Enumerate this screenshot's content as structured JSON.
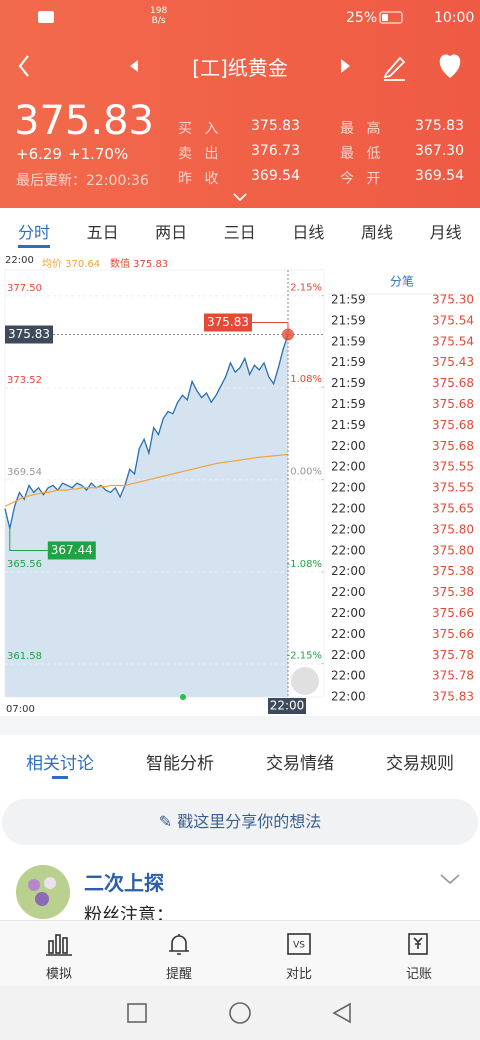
{
  "status": {
    "speed": "198",
    "speed_unit": "B/s",
    "battery": "25%",
    "time": "10:00"
  },
  "header": {
    "title": "[工]纸黄金"
  },
  "quote": {
    "price": "375.83",
    "change": "+6.29",
    "change_pct": "+1.70%",
    "updated": "最后更新：22:00:36",
    "stats": [
      [
        "买 入",
        "375.83",
        "最 高",
        "375.83"
      ],
      [
        "卖 出",
        "376.73",
        "最 低",
        "367.30"
      ],
      [
        "昨 收",
        "369.54",
        "今 开",
        "369.54"
      ]
    ]
  },
  "tabs": [
    "分时",
    "五日",
    "两日",
    "三日",
    "日线",
    "周线",
    "月线"
  ],
  "chart_info": {
    "time": "22:00",
    "avg": "均价 370.64",
    "value": "数值 375.83"
  },
  "chart_data": {
    "type": "line",
    "ylim": [
      360.15,
      378.62
    ],
    "yticks": [
      {
        "value": 377.5,
        "label": "377.50"
      },
      {
        "value": 373.52,
        "label": "373.52"
      },
      {
        "value": 369.54,
        "label": "369.54"
      },
      {
        "value": 365.56,
        "label": "365.56"
      },
      {
        "value": 361.58,
        "label": "361.58"
      }
    ],
    "y2lim": [
      -2.54,
      2.45
    ],
    "y2ticks": [
      {
        "value": 2.15,
        "label": "2.15%"
      },
      {
        "value": 1.08,
        "label": "1.08%"
      },
      {
        "value": 0,
        "label": "0.00%"
      },
      {
        "value": -1.08,
        "label": "-1.08%"
      },
      {
        "value": -2.15,
        "label": "-2.15%"
      }
    ],
    "xticks": [
      "07:00",
      "22:00"
    ],
    "annotations": {
      "current": "375.83",
      "current_axis": "375.83",
      "low": "367.44"
    },
    "series": [
      {
        "name": "price",
        "color": "#2a6fb0",
        "values": [
          368.3,
          367.44,
          368.4,
          369.0,
          368.7,
          369.3,
          369.0,
          369.2,
          368.9,
          369.2,
          369.3,
          369.1,
          369.4,
          369.3,
          369.2,
          369.4,
          369.3,
          369.1,
          369.4,
          369.2,
          369.3,
          369.1,
          369.0,
          369.2,
          368.8,
          369.3,
          370.0,
          369.8,
          370.9,
          371.3,
          370.7,
          371.8,
          371.5,
          372.2,
          372.5,
          372.4,
          372.9,
          373.2,
          373.0,
          373.8,
          373.4,
          373.1,
          373.3,
          372.9,
          373.2,
          373.6,
          374.0,
          374.6,
          374.2,
          374.4,
          374.8,
          374.1,
          374.5,
          374.3,
          374.6,
          374.0,
          373.7,
          374.4,
          375.2,
          375.83
        ]
      },
      {
        "name": "avg",
        "color": "#f0a23c",
        "values": [
          368.4,
          368.5,
          368.6,
          368.7,
          368.8,
          368.85,
          368.9,
          368.95,
          369.0,
          369.0,
          369.05,
          369.1,
          369.1,
          369.1,
          369.15,
          369.15,
          369.2,
          369.2,
          369.2,
          369.2,
          369.25,
          369.25,
          369.3,
          369.3,
          369.3,
          369.3,
          369.35,
          369.4,
          369.45,
          369.5,
          369.55,
          369.6,
          369.65,
          369.7,
          369.75,
          369.8,
          369.85,
          369.9,
          369.95,
          370.0,
          370.05,
          370.1,
          370.15,
          370.2,
          370.25,
          370.28,
          370.31,
          370.34,
          370.37,
          370.4,
          370.43,
          370.46,
          370.49,
          370.52,
          370.54,
          370.56,
          370.58,
          370.6,
          370.62,
          370.64
        ]
      }
    ]
  },
  "ticks_panel": {
    "title": "分笔",
    "rows": [
      [
        "21:59",
        "375.30"
      ],
      [
        "21:59",
        "375.54"
      ],
      [
        "21:59",
        "375.54"
      ],
      [
        "21:59",
        "375.43"
      ],
      [
        "21:59",
        "375.68"
      ],
      [
        "21:59",
        "375.68"
      ],
      [
        "21:59",
        "375.68"
      ],
      [
        "22:00",
        "375.68"
      ],
      [
        "22:00",
        "375.55"
      ],
      [
        "22:00",
        "375.55"
      ],
      [
        "22:00",
        "375.65"
      ],
      [
        "22:00",
        "375.80"
      ],
      [
        "22:00",
        "375.80"
      ],
      [
        "22:00",
        "375.38"
      ],
      [
        "22:00",
        "375.38"
      ],
      [
        "22:00",
        "375.66"
      ],
      [
        "22:00",
        "375.66"
      ],
      [
        "22:00",
        "375.78"
      ],
      [
        "22:00",
        "375.78"
      ],
      [
        "22:00",
        "375.83"
      ]
    ]
  },
  "sub_tabs": [
    "相关讨论",
    "智能分析",
    "交易情绪",
    "交易规则"
  ],
  "input": {
    "placeholder": "戳这里分享你的想法"
  },
  "post": {
    "user": "二次上探",
    "text": "粉丝注意："
  },
  "nav": [
    "模拟",
    "提醒",
    "对比",
    "记账"
  ]
}
